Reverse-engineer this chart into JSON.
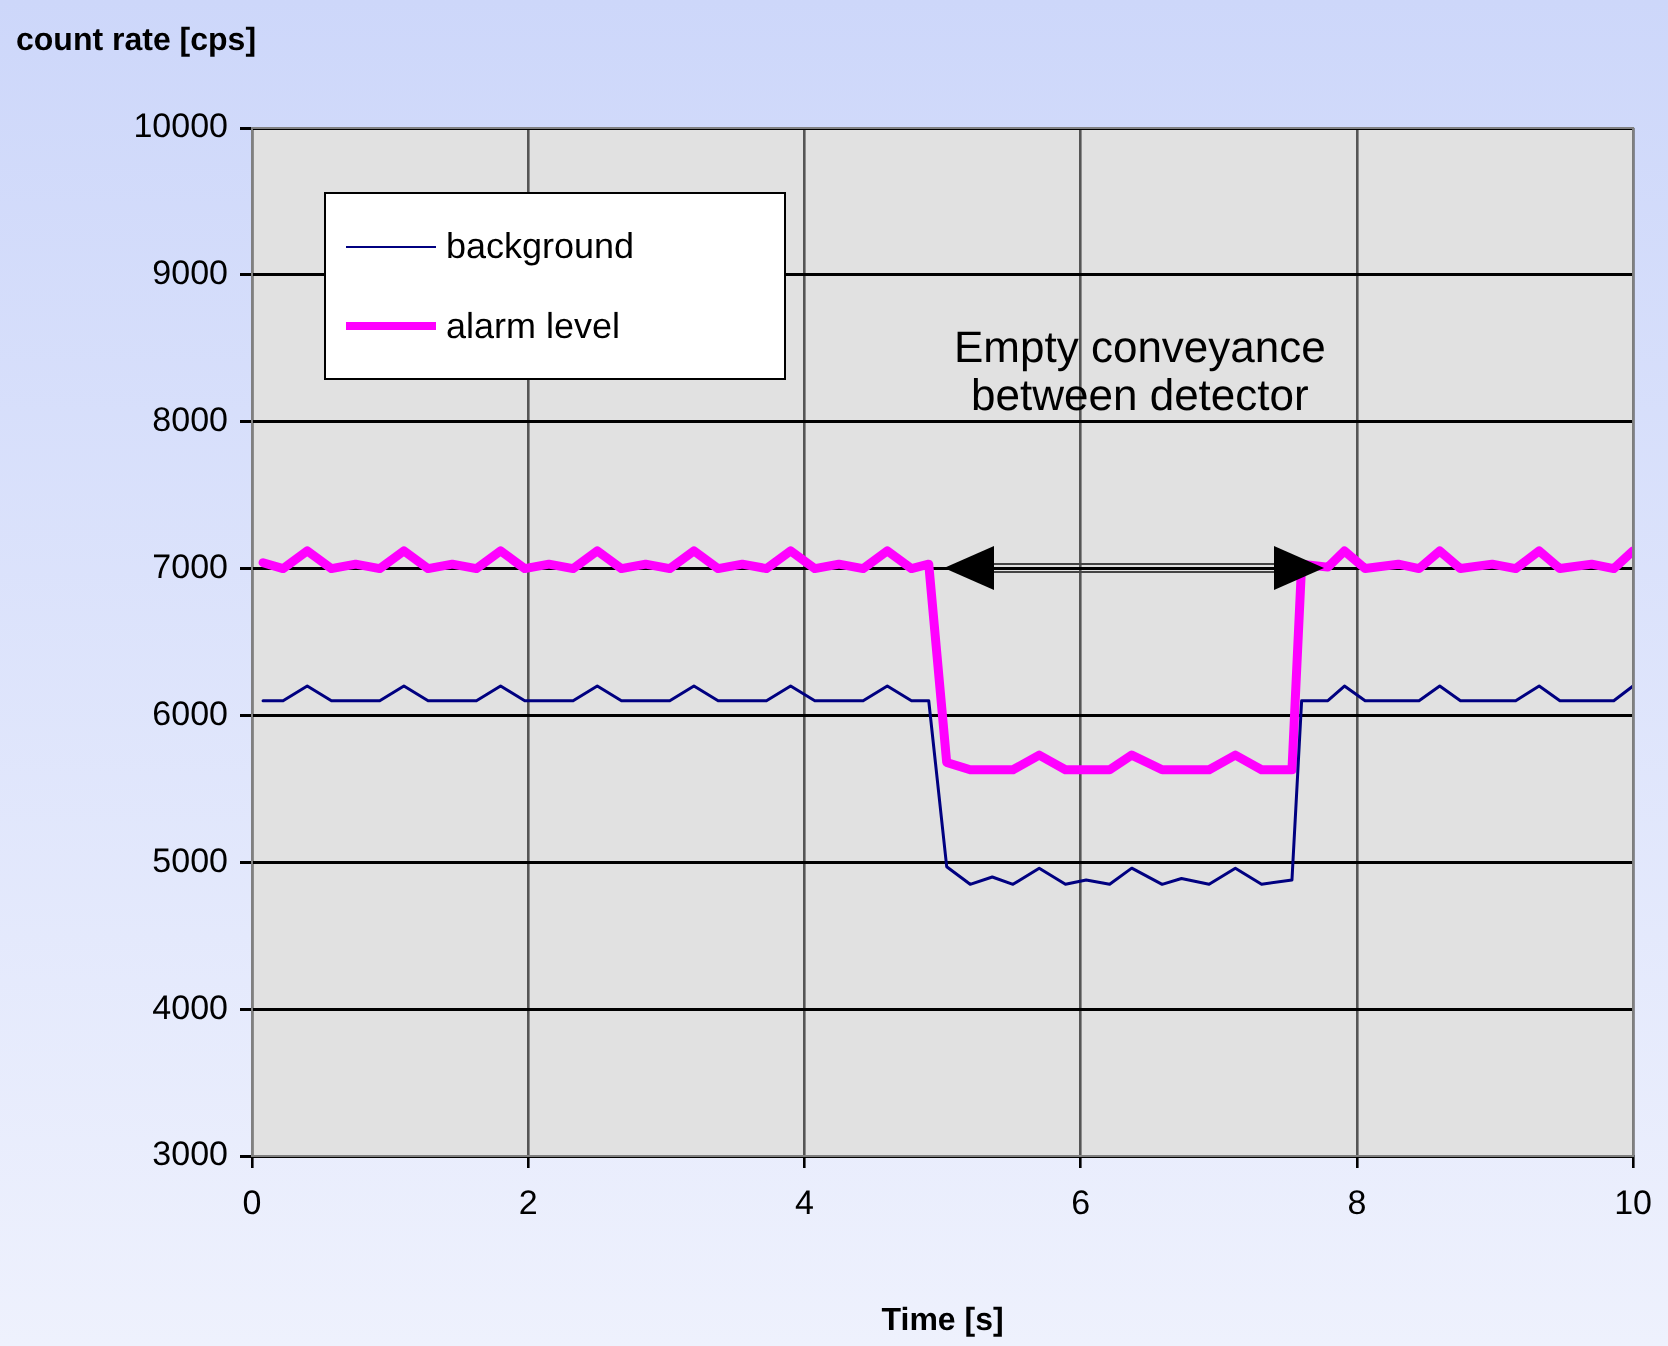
{
  "chart_data": {
    "type": "line",
    "xlabel": "Time [s]",
    "ylabel": "count rate [cps]",
    "x": [
      0.08,
      0.225,
      0.4,
      0.575,
      0.75,
      0.925,
      1.1,
      1.275,
      1.45,
      1.625,
      1.8,
      1.975,
      2.15,
      2.325,
      2.5,
      2.675,
      2.85,
      3.025,
      3.2,
      3.375,
      3.55,
      3.725,
      3.9,
      4.075,
      4.25,
      4.425,
      4.6,
      4.775,
      4.9,
      5.03,
      5.2,
      5.36,
      5.51,
      5.7,
      5.89,
      6.04,
      6.21,
      6.37,
      6.59,
      6.73,
      6.93,
      7.12,
      7.31,
      7.53,
      7.6,
      7.79,
      7.91,
      8.06,
      8.3,
      8.45,
      8.6,
      8.75,
      8.98,
      9.15,
      9.32,
      9.47,
      9.7,
      9.86,
      10.0
    ],
    "series": [
      {
        "name": "background",
        "color": "#000080",
        "values": [
          6100,
          6100,
          6200,
          6100,
          6100,
          6100,
          6200,
          6100,
          6100,
          6100,
          6200,
          6100,
          6100,
          6100,
          6200,
          6100,
          6100,
          6100,
          6200,
          6100,
          6100,
          6100,
          6200,
          6100,
          6100,
          6100,
          6200,
          6100,
          6100,
          4970,
          4850,
          4900,
          4850,
          4960,
          4850,
          4880,
          4850,
          4960,
          4850,
          4890,
          4850,
          4960,
          4850,
          4880,
          6100,
          6100,
          6200,
          6100,
          6100,
          6100,
          6200,
          6100,
          6100,
          6100,
          6200,
          6100,
          6100,
          6100,
          6200
        ]
      },
      {
        "name": "alarm level",
        "color": "#ff00ff",
        "values": [
          7040,
          7000,
          7120,
          7000,
          7030,
          7000,
          7120,
          7000,
          7030,
          7000,
          7120,
          7000,
          7030,
          7000,
          7120,
          7000,
          7030,
          7000,
          7120,
          7000,
          7030,
          7000,
          7120,
          7000,
          7030,
          7000,
          7120,
          7000,
          7030,
          5680,
          5630,
          5630,
          5630,
          5730,
          5630,
          5630,
          5630,
          5730,
          5630,
          5630,
          5630,
          5730,
          5630,
          5630,
          7030,
          7010,
          7120,
          7000,
          7030,
          7000,
          7120,
          7000,
          7030,
          7000,
          7120,
          7000,
          7030,
          7000,
          7120
        ]
      }
    ],
    "xlim": [
      0,
      10
    ],
    "xticks": [
      0,
      2,
      4,
      6,
      8,
      10
    ],
    "ylim": [
      3000,
      10000
    ],
    "yticks": [
      3000,
      4000,
      5000,
      6000,
      7000,
      8000,
      9000,
      10000
    ],
    "grid": true,
    "legend": "top left",
    "marker": "none",
    "line_style": "solid",
    "annotations": [
      "Empty conveyance\nbetween detector"
    ]
  }
}
